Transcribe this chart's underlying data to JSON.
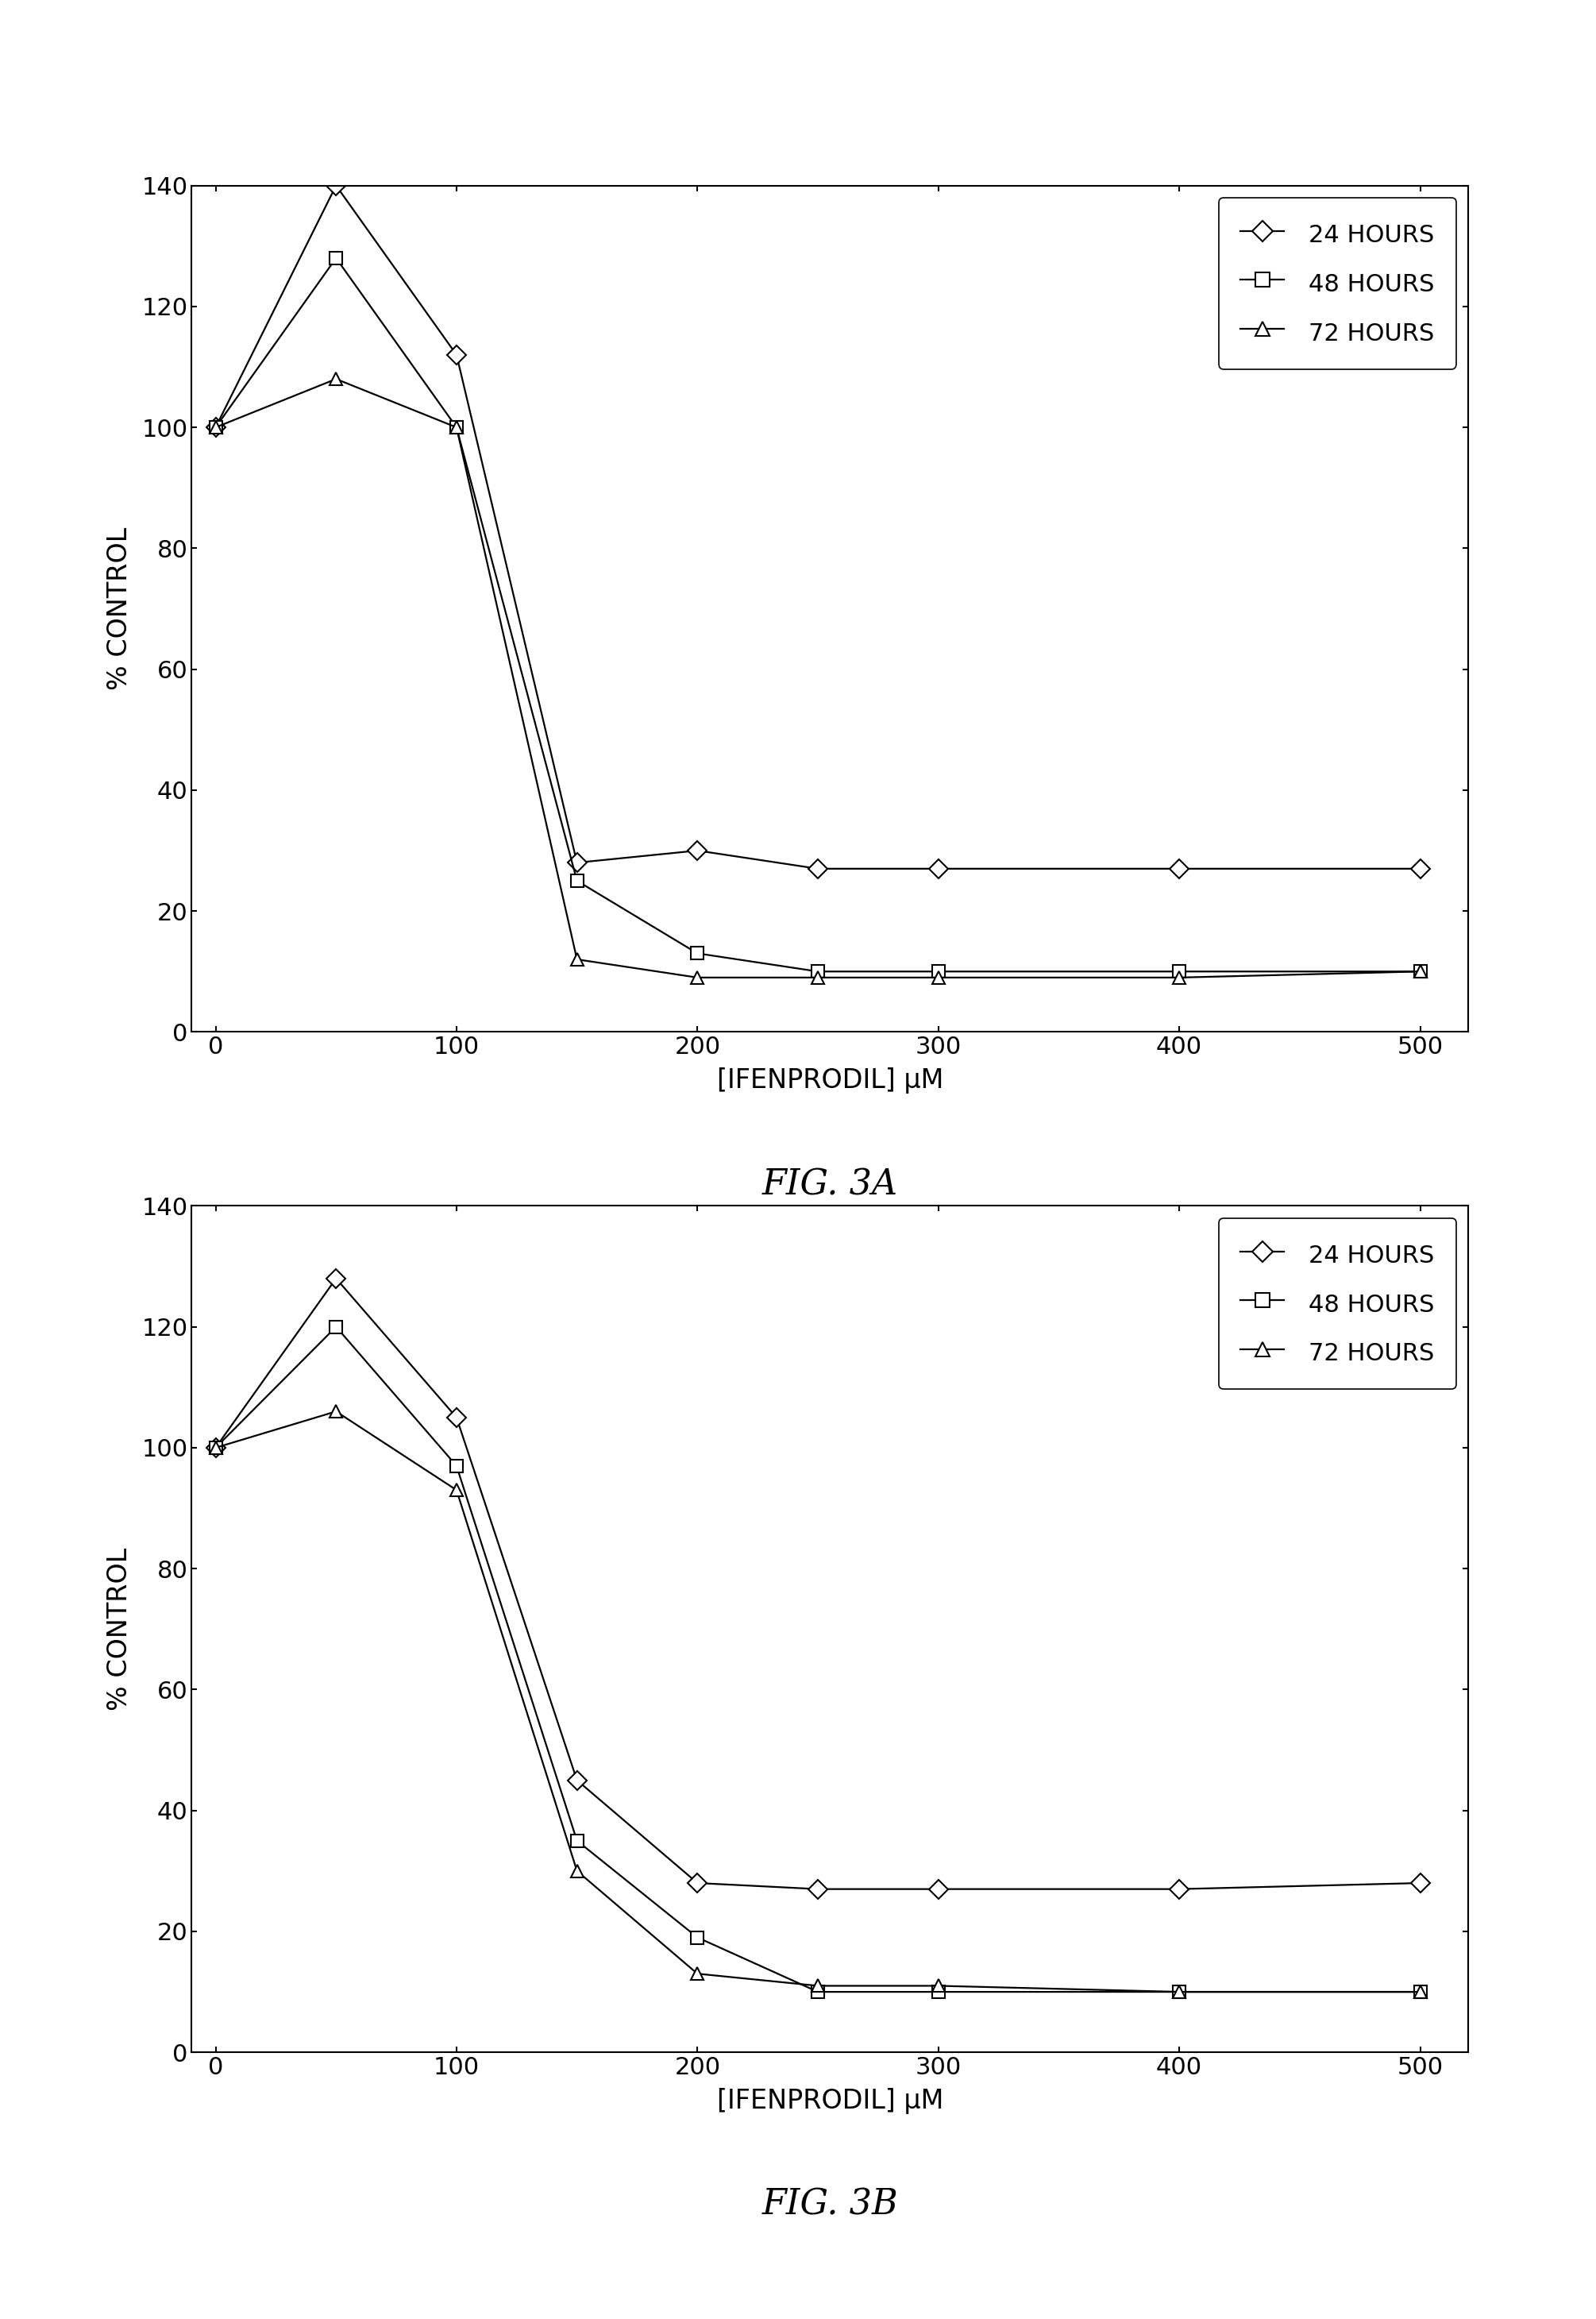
{
  "fig3a": {
    "series": [
      {
        "label": "24 HOURS",
        "marker": "D",
        "x": [
          0,
          50,
          100,
          150,
          200,
          250,
          300,
          400,
          500
        ],
        "y": [
          100,
          140,
          112,
          28,
          30,
          27,
          27,
          27,
          27
        ]
      },
      {
        "label": "48 HOURS",
        "marker": "s",
        "x": [
          0,
          50,
          100,
          150,
          200,
          250,
          300,
          400,
          500
        ],
        "y": [
          100,
          128,
          100,
          25,
          13,
          10,
          10,
          10,
          10
        ]
      },
      {
        "label": "72 HOURS",
        "marker": "^",
        "x": [
          0,
          50,
          100,
          150,
          200,
          250,
          300,
          400,
          500
        ],
        "y": [
          100,
          108,
          100,
          12,
          9,
          9,
          9,
          9,
          10
        ]
      }
    ],
    "xlabel": "[IFENPRODIL] μM",
    "ylabel": "% CONTROL",
    "ylim": [
      0,
      140
    ],
    "xlim": [
      -10,
      520
    ],
    "yticks": [
      0,
      20,
      40,
      60,
      80,
      100,
      120,
      140
    ],
    "xticks": [
      0,
      100,
      200,
      300,
      400,
      500
    ],
    "title": "FIG. 3A"
  },
  "fig3b": {
    "series": [
      {
        "label": "24 HOURS",
        "marker": "D",
        "x": [
          0,
          50,
          100,
          150,
          200,
          250,
          300,
          400,
          500
        ],
        "y": [
          100,
          128,
          105,
          45,
          28,
          27,
          27,
          27,
          28
        ]
      },
      {
        "label": "48 HOURS",
        "marker": "s",
        "x": [
          0,
          50,
          100,
          150,
          200,
          250,
          300,
          400,
          500
        ],
        "y": [
          100,
          120,
          97,
          35,
          19,
          10,
          10,
          10,
          10
        ]
      },
      {
        "label": "72 HOURS",
        "marker": "^",
        "x": [
          0,
          50,
          100,
          150,
          200,
          250,
          300,
          400,
          500
        ],
        "y": [
          100,
          106,
          93,
          30,
          13,
          11,
          11,
          10,
          10
        ]
      }
    ],
    "xlabel": "[IFENPRODIL] μM",
    "ylabel": "% CONTROL",
    "ylim": [
      0,
      140
    ],
    "xlim": [
      -10,
      520
    ],
    "yticks": [
      0,
      20,
      40,
      60,
      80,
      100,
      120,
      140
    ],
    "xticks": [
      0,
      100,
      200,
      300,
      400,
      500
    ],
    "title": "FIG. 3B"
  },
  "line_color": "#000000",
  "marker_facecolor": "#ffffff",
  "marker_edgecolor": "#000000",
  "marker_size": 12,
  "linewidth": 1.6,
  "background_color": "#ffffff"
}
